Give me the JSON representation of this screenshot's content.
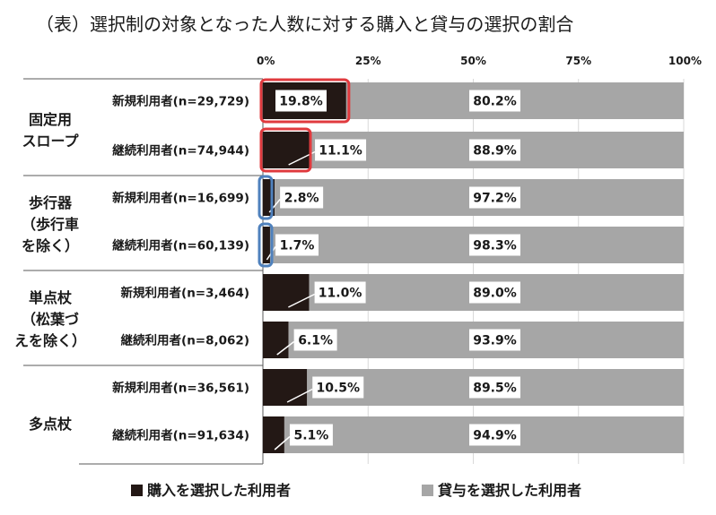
{
  "chart_data": {
    "type": "bar",
    "orientation": "horizontal",
    "stacked": true,
    "title": "（表）選択制の対象となった人数に対する購入と貸与の選択の割合",
    "xlim": [
      0,
      100
    ],
    "x_ticks": [
      "0%",
      "25%",
      "50%",
      "75%",
      "100%"
    ],
    "grid": "vertical",
    "legend_position": "bottom",
    "groups": [
      {
        "label_lines": [
          "固定用",
          "スロープ"
        ],
        "rows": [
          {
            "label": "新規利用者(n=29,729)",
            "purchase": 19.8,
            "lease": 80.2,
            "purchase_label": "19.8%",
            "lease_label": "80.2%",
            "highlight": "red"
          },
          {
            "label": "継続利用者(n=74,944)",
            "purchase": 11.1,
            "lease": 88.9,
            "purchase_label": "11.1%",
            "lease_label": "88.9%",
            "highlight": "red"
          }
        ]
      },
      {
        "label_lines": [
          "歩行器",
          "（歩行車",
          "を除く）"
        ],
        "rows": [
          {
            "label": "新規利用者(n=16,699)",
            "purchase": 2.8,
            "lease": 97.2,
            "purchase_label": "2.8%",
            "lease_label": "97.2%",
            "highlight": "blue"
          },
          {
            "label": "継続利用者(n=60,139)",
            "purchase": 1.7,
            "lease": 98.3,
            "purchase_label": "1.7%",
            "lease_label": "98.3%",
            "highlight": "blue"
          }
        ]
      },
      {
        "label_lines": [
          "単点杖",
          "（松葉づ",
          "えを除く）"
        ],
        "rows": [
          {
            "label": "新規利用者(n=3,464)",
            "purchase": 11.0,
            "lease": 89.0,
            "purchase_label": "11.0%",
            "lease_label": "89.0%",
            "highlight": ""
          },
          {
            "label": "継続利用者(n=8,062)",
            "purchase": 6.1,
            "lease": 93.9,
            "purchase_label": "6.1%",
            "lease_label": "93.9%",
            "highlight": ""
          }
        ]
      },
      {
        "label_lines": [
          "多点杖"
        ],
        "rows": [
          {
            "label": "新規利用者(n=36,561)",
            "purchase": 10.5,
            "lease": 89.5,
            "purchase_label": "10.5%",
            "lease_label": "89.5%",
            "highlight": ""
          },
          {
            "label": "継続利用者(n=91,634)",
            "purchase": 5.1,
            "lease": 94.9,
            "purchase_label": "5.1%",
            "lease_label": "94.9%",
            "highlight": ""
          }
        ]
      }
    ],
    "series": [
      {
        "name": "購入を選択した利用者",
        "color": "#231815"
      },
      {
        "name": "貸与を選択した利用者",
        "color": "#a6a6a6"
      }
    ],
    "highlight_colors": {
      "red": "#e03a3e",
      "blue": "#4f81bd"
    }
  }
}
